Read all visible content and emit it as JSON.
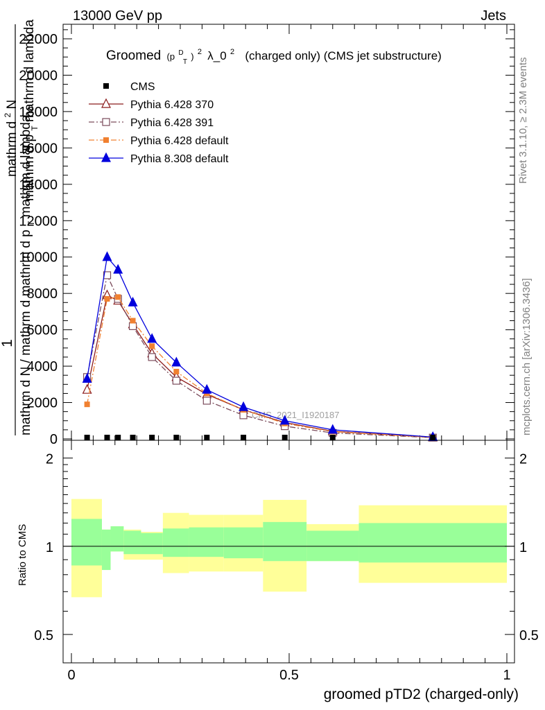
{
  "header": {
    "energy_label": "13000 GeV pp",
    "category_label": "Jets"
  },
  "side_labels": {
    "rivet": "Rivet 3.1.10, ≥ 2.3M events",
    "mcplots": "mcplots.cern.ch [arXiv:1306.3436]"
  },
  "title": {
    "main": "Groomed",
    "formula": "(p",
    "sup_d": "D",
    "sub_t": "T",
    "close": ")",
    "sup_2": "2",
    "lambda": "λ_0",
    "sup_2b": "2",
    "rest": "(charged only) (CMS jet substructure)"
  },
  "analysis_tag": "CMS_2021_I1920187",
  "ylabel_main": {
    "line1": "mathrm d",
    "line1_sup": "2",
    "line1_end": "N",
    "line2": "mathrm d p",
    "line2_sub": "T",
    "line2_end": " mathrm d lambda",
    "one": "1",
    "denom": "mathrm d N / mathrm d mathrm d p",
    "denom_sub": "T",
    "denom_end": " mathrm d lambda"
  },
  "ylabel_ratio": "Ratio to CMS",
  "xlabel": "groomed pTD2 (charged-only)",
  "x_ticks": [
    "0",
    "0.5",
    "1"
  ],
  "y_ticks_main": [
    "0",
    "2000",
    "4000",
    "6000",
    "8000",
    "10000",
    "12000",
    "14000",
    "16000",
    "18000",
    "20000",
    "22000"
  ],
  "y_ticks_ratio": [
    "0.5",
    "1",
    "2"
  ],
  "chart_data": {
    "type": "line",
    "xlim": [
      0,
      1
    ],
    "ylim": [
      0,
      22800
    ],
    "ratio_ylim": [
      0.4,
      2.3
    ],
    "legend_position": "top-left",
    "colors": {
      "cms": "#000000",
      "p370": "#8b1a1a",
      "p391": "#7a4a5a",
      "p6def": "#f08030",
      "p8def": "#0000dd",
      "band_inner": "#99ff99",
      "band_outer": "#ffff99"
    },
    "legend": [
      {
        "label": "CMS",
        "key": "cms"
      },
      {
        "label": "Pythia 6.428 370",
        "key": "p370"
      },
      {
        "label": "Pythia 6.428 391",
        "key": "p391"
      },
      {
        "label": "Pythia 6.428 default",
        "key": "p6def"
      },
      {
        "label": "Pythia 8.308 default",
        "key": "p8def"
      }
    ],
    "cms": {
      "x": [
        0.036,
        0.082,
        0.107,
        0.141,
        0.185,
        0.241,
        0.311,
        0.395,
        0.49,
        0.6,
        0.83
      ],
      "y": [
        0,
        0,
        0,
        0,
        0,
        0,
        0,
        0,
        0,
        0,
        0
      ]
    },
    "series": [
      {
        "key": "p370",
        "name": "Pythia 6.428 370",
        "marker": "triangle-open",
        "dash": "",
        "x": [
          0.036,
          0.082,
          0.107,
          0.141,
          0.185,
          0.241,
          0.311,
          0.395,
          0.49,
          0.6,
          0.83
        ],
        "y": [
          2700,
          7900,
          7600,
          6300,
          4700,
          3400,
          2450,
          1600,
          900,
          420,
          80
        ]
      },
      {
        "key": "p391",
        "name": "Pythia 6.428 391",
        "marker": "square-open",
        "dash": "8,3,2,3",
        "x": [
          0.036,
          0.082,
          0.107,
          0.141,
          0.185,
          0.241,
          0.311,
          0.395,
          0.49,
          0.6,
          0.83
        ],
        "y": [
          3400,
          9000,
          7700,
          6200,
          4500,
          3200,
          2100,
          1300,
          700,
          330,
          70
        ]
      },
      {
        "key": "p6def",
        "name": "Pythia 6.428 default",
        "marker": "square-filled",
        "dash": "8,3,2,3",
        "x": [
          0.036,
          0.082,
          0.107,
          0.141,
          0.185,
          0.241,
          0.311,
          0.395,
          0.49,
          0.6,
          0.83
        ],
        "y": [
          1900,
          7700,
          7800,
          6500,
          5100,
          3700,
          2500,
          1600,
          850,
          400,
          80
        ]
      },
      {
        "key": "p8def",
        "name": "Pythia 8.308 default",
        "marker": "triangle-filled",
        "dash": "",
        "x": [
          0.036,
          0.082,
          0.107,
          0.141,
          0.185,
          0.241,
          0.311,
          0.395,
          0.49,
          0.6,
          0.83
        ],
        "y": [
          3300,
          10000,
          9300,
          7500,
          5500,
          4200,
          2700,
          1750,
          1000,
          500,
          100
        ]
      }
    ],
    "ratio_bands": [
      {
        "x0": 0.0,
        "x1": 0.07,
        "inner": [
          0.86,
          1.24
        ],
        "outer": [
          0.67,
          1.45
        ]
      },
      {
        "x0": 0.07,
        "x1": 0.09,
        "inner": [
          0.83,
          1.14
        ],
        "outer": [
          0.83,
          1.14
        ]
      },
      {
        "x0": 0.09,
        "x1": 0.12,
        "inner": [
          0.96,
          1.17
        ],
        "outer": [
          0.96,
          1.17
        ]
      },
      {
        "x0": 0.12,
        "x1": 0.16,
        "inner": [
          0.94,
          1.13
        ],
        "outer": [
          0.9,
          1.14
        ]
      },
      {
        "x0": 0.16,
        "x1": 0.21,
        "inner": [
          0.94,
          1.11
        ],
        "outer": [
          0.9,
          1.12
        ]
      },
      {
        "x0": 0.21,
        "x1": 0.27,
        "inner": [
          0.92,
          1.15
        ],
        "outer": [
          0.81,
          1.3
        ]
      },
      {
        "x0": 0.27,
        "x1": 0.35,
        "inner": [
          0.92,
          1.16
        ],
        "outer": [
          0.82,
          1.28
        ]
      },
      {
        "x0": 0.35,
        "x1": 0.44,
        "inner": [
          0.91,
          1.16
        ],
        "outer": [
          0.82,
          1.28
        ]
      },
      {
        "x0": 0.44,
        "x1": 0.54,
        "inner": [
          0.89,
          1.21
        ],
        "outer": [
          0.7,
          1.44
        ]
      },
      {
        "x0": 0.54,
        "x1": 0.66,
        "inner": [
          0.89,
          1.13
        ],
        "outer": [
          0.89,
          1.19
        ]
      },
      {
        "x0": 0.66,
        "x1": 1.0,
        "inner": [
          0.88,
          1.2
        ],
        "outer": [
          0.75,
          1.38
        ]
      }
    ]
  }
}
